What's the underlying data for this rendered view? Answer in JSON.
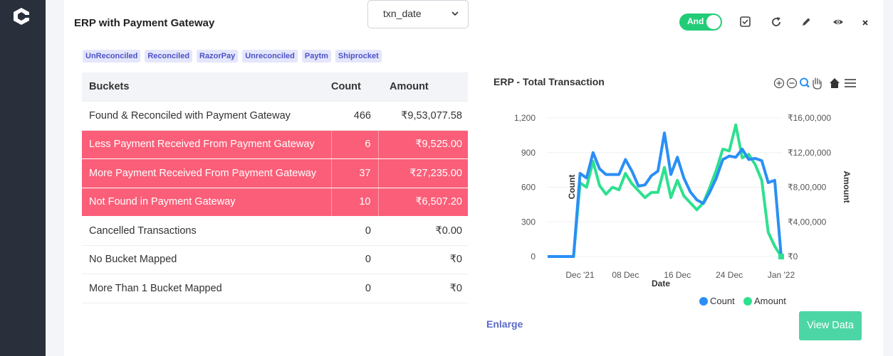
{
  "widget": {
    "title": "ERP with Payment Gateway",
    "date_field": {
      "selected": "txn_date"
    },
    "toggle_label": "And",
    "tags": [
      "UnReconciled",
      "Reconciled",
      "RazorPay",
      "Unreconciled",
      "Paytm",
      "Shiprocket"
    ],
    "table": {
      "headers": [
        "Buckets",
        "Count",
        "Amount"
      ],
      "rows": [
        {
          "bucket": "Found & Reconciled with Payment Gateway",
          "count": "466",
          "amount": "₹9,53,077.58",
          "highlight": false
        },
        {
          "bucket": "Less Payment Received From Payment Gateway",
          "count": "6",
          "amount": "₹9,525.00",
          "highlight": true
        },
        {
          "bucket": "More Payment Received From Payment Gateway",
          "count": "37",
          "amount": "₹27,235.00",
          "highlight": true
        },
        {
          "bucket": "Not Found in Payment Gateway",
          "count": "10",
          "amount": "₹6,507.20",
          "highlight": true
        },
        {
          "bucket": "Cancelled Transactions",
          "count": "0",
          "amount": "₹0.00",
          "highlight": false
        },
        {
          "bucket": "No Bucket Mapped",
          "count": "0",
          "amount": "₹0",
          "highlight": false
        },
        {
          "bucket": "More Than 1 Bucket Mapped",
          "count": "0",
          "amount": "₹0",
          "highlight": false
        }
      ]
    },
    "enlarge_label": "Enlarge",
    "view_data_label": "View Data",
    "colors": {
      "highlight": "#fb5e78",
      "count": "#2a8ff5",
      "amount": "#2ee08f",
      "toggle": "#22cc77",
      "button": "#4cd6a6"
    },
    "icons": [
      "checkbox-icon",
      "refresh-icon",
      "edit-icon",
      "eye-icon",
      "close-icon",
      "zoom-in-icon",
      "zoom-out-icon",
      "magnify-icon",
      "pan-icon",
      "home-icon",
      "menu-icon"
    ]
  },
  "chart_data": {
    "type": "line",
    "title": "ERP - Total Transaction",
    "xlabel": "Date",
    "ylabel": "Count",
    "y2label": "Amount",
    "x_ticks": [
      "Dec '21",
      "08 Dec",
      "16 Dec",
      "24 Dec",
      "Jan '22"
    ],
    "y_ticks": [
      "0",
      "300",
      "600",
      "900",
      "1,200"
    ],
    "y2_ticks": [
      "₹0",
      "₹4,00,000",
      "₹8,00,000",
      "₹12,00,000",
      "₹16,00,000"
    ],
    "ylim": [
      0,
      1200
    ],
    "y2lim": [
      0,
      1600000
    ],
    "x": [
      "2021-11-26",
      "2021-11-27",
      "2021-11-28",
      "2021-11-29",
      "2021-11-30",
      "2021-12-01",
      "2021-12-02",
      "2021-12-03",
      "2021-12-04",
      "2021-12-05",
      "2021-12-06",
      "2021-12-07",
      "2021-12-08",
      "2021-12-09",
      "2021-12-10",
      "2021-12-11",
      "2021-12-12",
      "2021-12-13",
      "2021-12-14",
      "2021-12-15",
      "2021-12-16",
      "2021-12-17",
      "2021-12-18",
      "2021-12-19",
      "2021-12-20",
      "2021-12-21",
      "2021-12-22",
      "2021-12-23",
      "2021-12-24",
      "2021-12-25",
      "2021-12-26",
      "2021-12-27",
      "2021-12-28",
      "2021-12-29",
      "2021-12-30",
      "2021-12-31",
      "2022-01-01"
    ],
    "series": [
      {
        "name": "Count",
        "axis": "left",
        "values": [
          0,
          0,
          0,
          0,
          0,
          720,
          680,
          900,
          760,
          710,
          710,
          710,
          840,
          740,
          610,
          620,
          700,
          740,
          1070,
          710,
          860,
          680,
          560,
          490,
          460,
          560,
          680,
          840,
          870,
          860,
          930,
          840,
          850,
          830,
          640,
          660,
          0
        ]
      },
      {
        "name": "Amount",
        "axis": "right",
        "values": [
          0,
          0,
          0,
          0,
          0,
          850000,
          800000,
          1100000,
          820000,
          720000,
          800000,
          770000,
          960000,
          840000,
          760000,
          680000,
          740000,
          740000,
          1030000,
          680000,
          880000,
          700000,
          620000,
          540000,
          620000,
          800000,
          1000000,
          1240000,
          1220000,
          1520000,
          1140000,
          1180000,
          1060000,
          880000,
          280000,
          120000,
          0
        ]
      }
    ],
    "legend_position": "bottom"
  }
}
